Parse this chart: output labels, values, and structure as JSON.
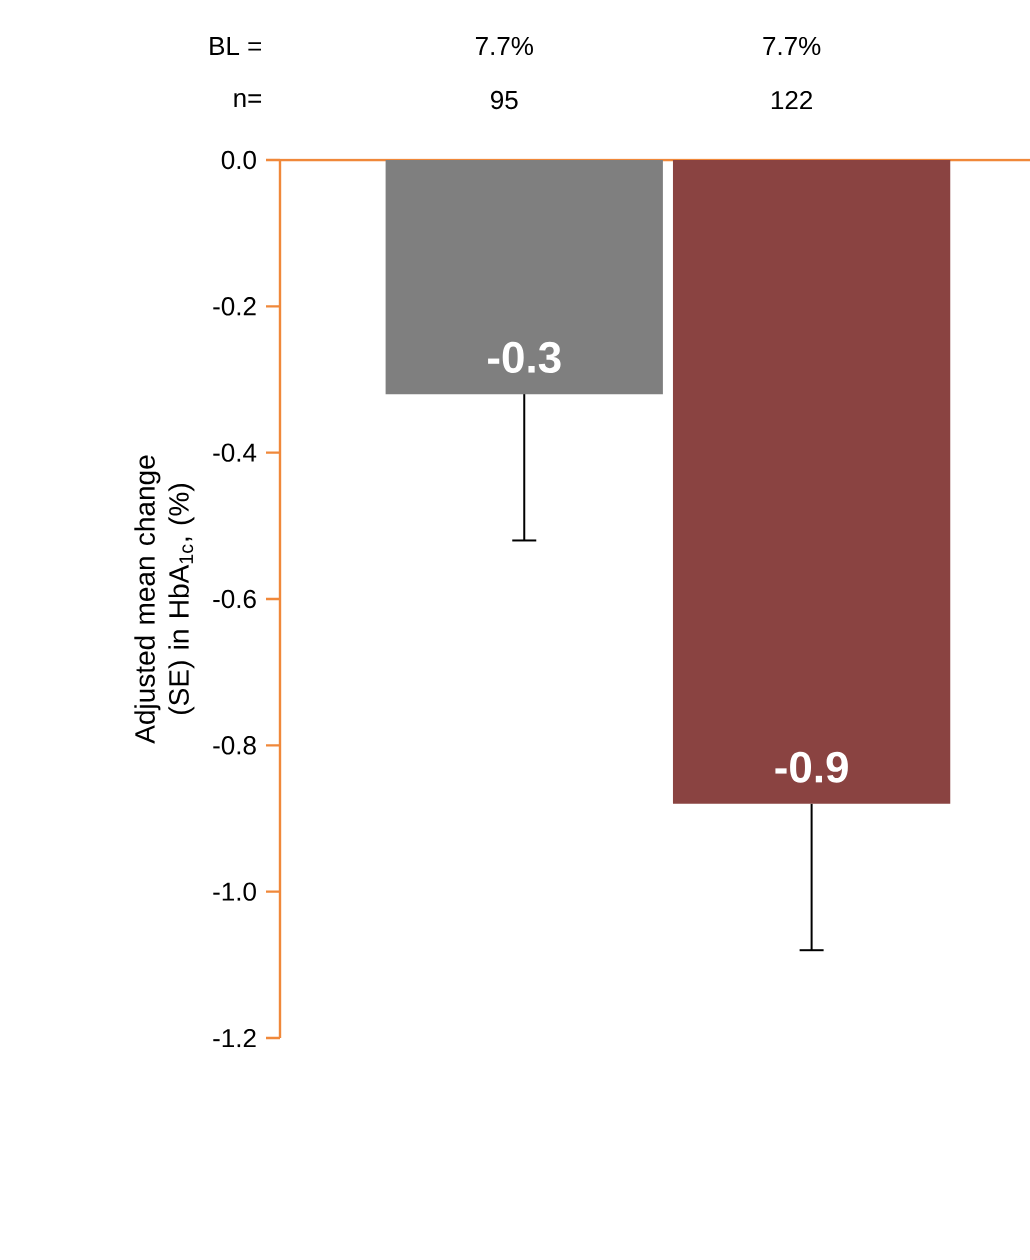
{
  "chart_data": {
    "type": "bar",
    "ylabel": "Adjusted mean change (SE) in HbA$_{1c}$, (%)",
    "categories": [
      null,
      null
    ],
    "values": [
      -0.32,
      -0.88
    ],
    "colors": [
      "#7f7f7f",
      "#8a4341"
    ],
    "errors": [
      [
        -0.52,
        -0.32
      ],
      [
        -1.08,
        -0.88
      ]
    ],
    "value_labels": [
      "-0.3",
      "-0.9"
    ],
    "ylim": [
      -1.2,
      0
    ],
    "yticks": [
      {
        "value": 0,
        "label": "0.0"
      },
      {
        "value": -0.2,
        "label": "-0.2"
      },
      {
        "value": -0.4,
        "label": "-0.4"
      },
      {
        "value": -0.6,
        "label": "-0.6"
      },
      {
        "value": -0.8,
        "label": "-0.8"
      },
      {
        "value": -1.0,
        "label": "-1.0"
      },
      {
        "value": -1.2,
        "label": "-1.2"
      }
    ],
    "annotations": [
      "BL =",
      "7.7%",
      "7.7%",
      "n=",
      "95",
      "122"
    ]
  }
}
